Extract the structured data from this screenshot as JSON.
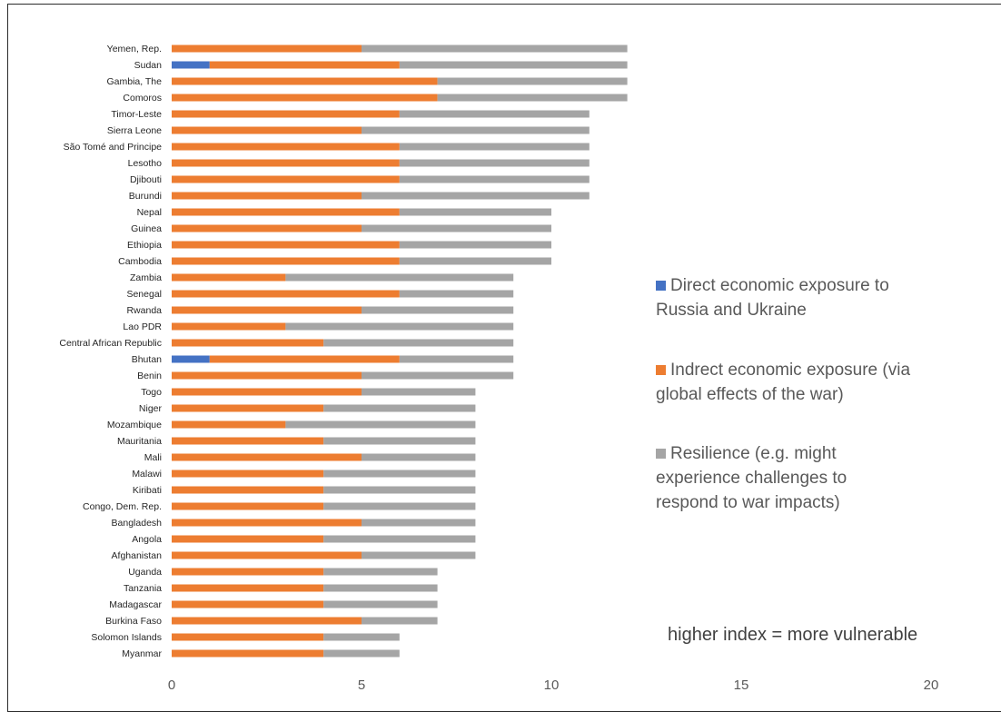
{
  "chart_data": {
    "type": "bar",
    "orientation": "horizontal",
    "stacked": true,
    "categories": [
      "Yemen, Rep.",
      "Sudan",
      "Gambia, The",
      "Comoros",
      "Timor-Leste",
      "Sierra Leone",
      "São Tomé and Principe",
      "Lesotho",
      "Djibouti",
      "Burundi",
      "Nepal",
      "Guinea",
      "Ethiopia",
      "Cambodia",
      "Zambia",
      "Senegal",
      "Rwanda",
      "Lao PDR",
      "Central African Republic",
      "Bhutan",
      "Benin",
      "Togo",
      "Niger",
      "Mozambique",
      "Mauritania",
      "Mali",
      "Malawi",
      "Kiribati",
      "Congo, Dem. Rep.",
      "Bangladesh",
      "Angola",
      "Afghanistan",
      "Uganda",
      "Tanzania",
      "Madagascar",
      "Burkina Faso",
      "Solomon Islands",
      "Myanmar"
    ],
    "series": [
      {
        "name": "Direct economic exposure to Russia and Ukraine",
        "color": "#4472c4",
        "values": [
          0,
          1,
          0,
          0,
          0,
          0,
          0,
          0,
          0,
          0,
          0,
          0,
          0,
          0,
          0,
          0,
          0,
          0,
          0,
          1,
          0,
          0,
          0,
          0,
          0,
          0,
          0,
          0,
          0,
          0,
          0,
          0,
          0,
          0,
          0,
          0,
          0,
          0
        ]
      },
      {
        "name": "Indrect economic exposure (via global effects of the war)",
        "color": "#ed7d31",
        "values": [
          5,
          5,
          7,
          7,
          6,
          5,
          6,
          6,
          6,
          5,
          6,
          5,
          6,
          6,
          3,
          6,
          5,
          3,
          4,
          5,
          5,
          5,
          4,
          3,
          4,
          5,
          4,
          4,
          4,
          5,
          4,
          5,
          4,
          4,
          4,
          5,
          4,
          4
        ]
      },
      {
        "name": "Resilience (e.g. might experience challenges to respond to war impacts)",
        "color": "#a5a5a5",
        "values": [
          7,
          6,
          5,
          5,
          5,
          6,
          5,
          5,
          5,
          6,
          4,
          5,
          4,
          4,
          6,
          3,
          4,
          6,
          5,
          3,
          4,
          3,
          4,
          5,
          4,
          3,
          4,
          4,
          4,
          3,
          4,
          3,
          3,
          3,
          3,
          2,
          2,
          2
        ]
      }
    ],
    "xlim": [
      0,
      20
    ],
    "xticks": [
      "0",
      "5",
      "10",
      "15",
      "20"
    ],
    "grid": false,
    "legend_position": "right",
    "legend_lines": [
      [
        "Direct economic exposure to",
        "Russia and Ukraine"
      ],
      [
        "Indrect economic exposure (via",
        "global effects of the war)"
      ],
      [
        "Resilience (e.g. might",
        "experience challenges to",
        "respond to war impacts)"
      ]
    ],
    "annotation": "higher index = more vulnerable"
  }
}
